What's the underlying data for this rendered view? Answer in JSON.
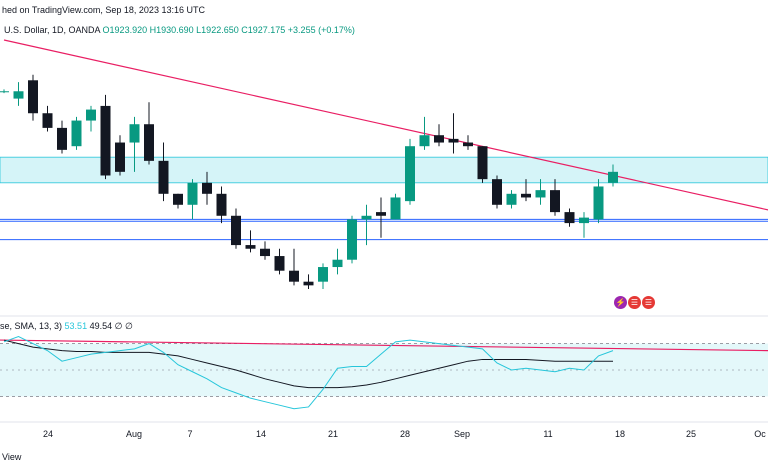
{
  "header": {
    "published_text": "hed on TradingView.com, Sep 18, 2023 13:16 UTC"
  },
  "symbol_line": {
    "name": "U.S. Dollar, 1D, OANDA",
    "open": "O1923.920",
    "high": "H1930.690",
    "low": "L1922.650",
    "close": "C1927.175",
    "change": "+3.255 (+0.17%)"
  },
  "oscillator_legend": {
    "name": "se, SMA, 13, 3)",
    "value_1": "53.51",
    "value_2": "49.54",
    "extra": "∅ ∅"
  },
  "footer": {
    "text": "View"
  },
  "colors": {
    "up": "#089981",
    "down": "#131722",
    "zone": "#b2ebf2",
    "trendline": "#e91e63",
    "hline": "#2962ff",
    "osc_line": "#26c6da",
    "osc_signal": "#131722"
  },
  "events_icons": [
    "lightning-icon",
    "us-flag-icon",
    "us-flag-icon"
  ],
  "chart_data": [
    {
      "type": "candlestick",
      "x_tick_labels": [
        "24",
        "Aug",
        "7",
        "14",
        "21",
        "28",
        "Sep",
        "11",
        "18",
        "25",
        "Oc"
      ],
      "y_axis_visible": false,
      "candles": [
        {
          "o": 100,
          "h": 101,
          "l": 99,
          "c": 100
        },
        {
          "o": 96,
          "h": 105,
          "l": 92,
          "c": 100
        },
        {
          "o": 106,
          "h": 109,
          "l": 84,
          "c": 88
        },
        {
          "o": 88,
          "h": 92,
          "l": 78,
          "c": 80
        },
        {
          "o": 80,
          "h": 84,
          "l": 66,
          "c": 68
        },
        {
          "o": 70,
          "h": 86,
          "l": 68,
          "c": 84
        },
        {
          "o": 84,
          "h": 92,
          "l": 78,
          "c": 90
        },
        {
          "o": 92,
          "h": 98,
          "l": 52,
          "c": 54
        },
        {
          "o": 72,
          "h": 76,
          "l": 54,
          "c": 56
        },
        {
          "o": 72,
          "h": 86,
          "l": 56,
          "c": 82
        },
        {
          "o": 82,
          "h": 94,
          "l": 60,
          "c": 62
        },
        {
          "o": 62,
          "h": 72,
          "l": 40,
          "c": 44
        },
        {
          "o": 44,
          "h": 44,
          "l": 36,
          "c": 38
        },
        {
          "o": 38,
          "h": 52,
          "l": 30,
          "c": 50
        },
        {
          "o": 50,
          "h": 56,
          "l": 38,
          "c": 44
        },
        {
          "o": 44,
          "h": 48,
          "l": 28,
          "c": 32
        },
        {
          "o": 32,
          "h": 36,
          "l": 14,
          "c": 16
        },
        {
          "o": 16,
          "h": 24,
          "l": 12,
          "c": 14
        },
        {
          "o": 14,
          "h": 18,
          "l": 8,
          "c": 10
        },
        {
          "o": 10,
          "h": 14,
          "l": 0,
          "c": 2
        },
        {
          "o": 2,
          "h": 14,
          "l": -6,
          "c": -4
        },
        {
          "o": -4,
          "h": 0,
          "l": -8,
          "c": -6
        },
        {
          "o": -4,
          "h": 6,
          "l": -8,
          "c": 4
        },
        {
          "o": 4,
          "h": 14,
          "l": 0,
          "c": 8
        },
        {
          "o": 8,
          "h": 32,
          "l": 6,
          "c": 30
        },
        {
          "o": 30,
          "h": 38,
          "l": 16,
          "c": 32
        },
        {
          "o": 34,
          "h": 42,
          "l": 20,
          "c": 32
        },
        {
          "o": 30,
          "h": 44,
          "l": 30,
          "c": 42
        },
        {
          "o": 40,
          "h": 74,
          "l": 38,
          "c": 70
        },
        {
          "o": 70,
          "h": 86,
          "l": 68,
          "c": 76
        },
        {
          "o": 76,
          "h": 82,
          "l": 70,
          "c": 72
        },
        {
          "o": 74,
          "h": 88,
          "l": 66,
          "c": 72
        },
        {
          "o": 72,
          "h": 76,
          "l": 68,
          "c": 70
        },
        {
          "o": 70,
          "h": 70,
          "l": 50,
          "c": 52
        },
        {
          "o": 52,
          "h": 54,
          "l": 36,
          "c": 38
        },
        {
          "o": 38,
          "h": 46,
          "l": 36,
          "c": 44
        },
        {
          "o": 44,
          "h": 52,
          "l": 40,
          "c": 42
        },
        {
          "o": 42,
          "h": 52,
          "l": 38,
          "c": 46
        },
        {
          "o": 46,
          "h": 52,
          "l": 32,
          "c": 34
        },
        {
          "o": 34,
          "h": 36,
          "l": 26,
          "c": 28
        },
        {
          "o": 28,
          "h": 34,
          "l": 20,
          "c": 31
        },
        {
          "o": 30,
          "h": 52,
          "l": 28,
          "c": 48
        },
        {
          "o": 50,
          "h": 60,
          "l": 48,
          "c": 56
        }
      ],
      "zone": {
        "from": 50,
        "to": 64
      },
      "horizontal_lines": [
        30,
        29,
        19
      ],
      "trendline": {
        "from_candle": 0,
        "from_value": 128,
        "to_candle": 50,
        "to_value": 34
      }
    },
    {
      "type": "line",
      "name": "stochastic oscillator",
      "series": [
        {
          "name": "%K",
          "values": [
            82,
            88,
            80,
            72,
            60,
            64,
            68,
            70,
            72,
            74,
            80,
            70,
            56,
            48,
            40,
            30,
            24,
            18,
            14,
            10,
            6,
            8,
            28,
            52,
            54,
            54,
            68,
            82,
            84,
            82,
            80,
            78,
            76,
            74,
            58,
            50,
            52,
            50,
            48,
            52,
            50,
            66,
            72
          ]
        },
        {
          "name": "%D",
          "values": [
            84,
            80,
            76,
            74,
            72,
            71,
            71,
            70,
            70,
            70,
            70,
            68,
            66,
            62,
            58,
            54,
            50,
            45,
            40,
            36,
            32,
            30,
            30,
            30,
            31,
            33,
            36,
            40,
            44,
            48,
            52,
            56,
            60,
            62,
            62,
            62,
            62,
            61,
            60,
            60,
            60,
            60,
            60
          ]
        }
      ],
      "band": [
        20,
        80
      ]
    }
  ]
}
